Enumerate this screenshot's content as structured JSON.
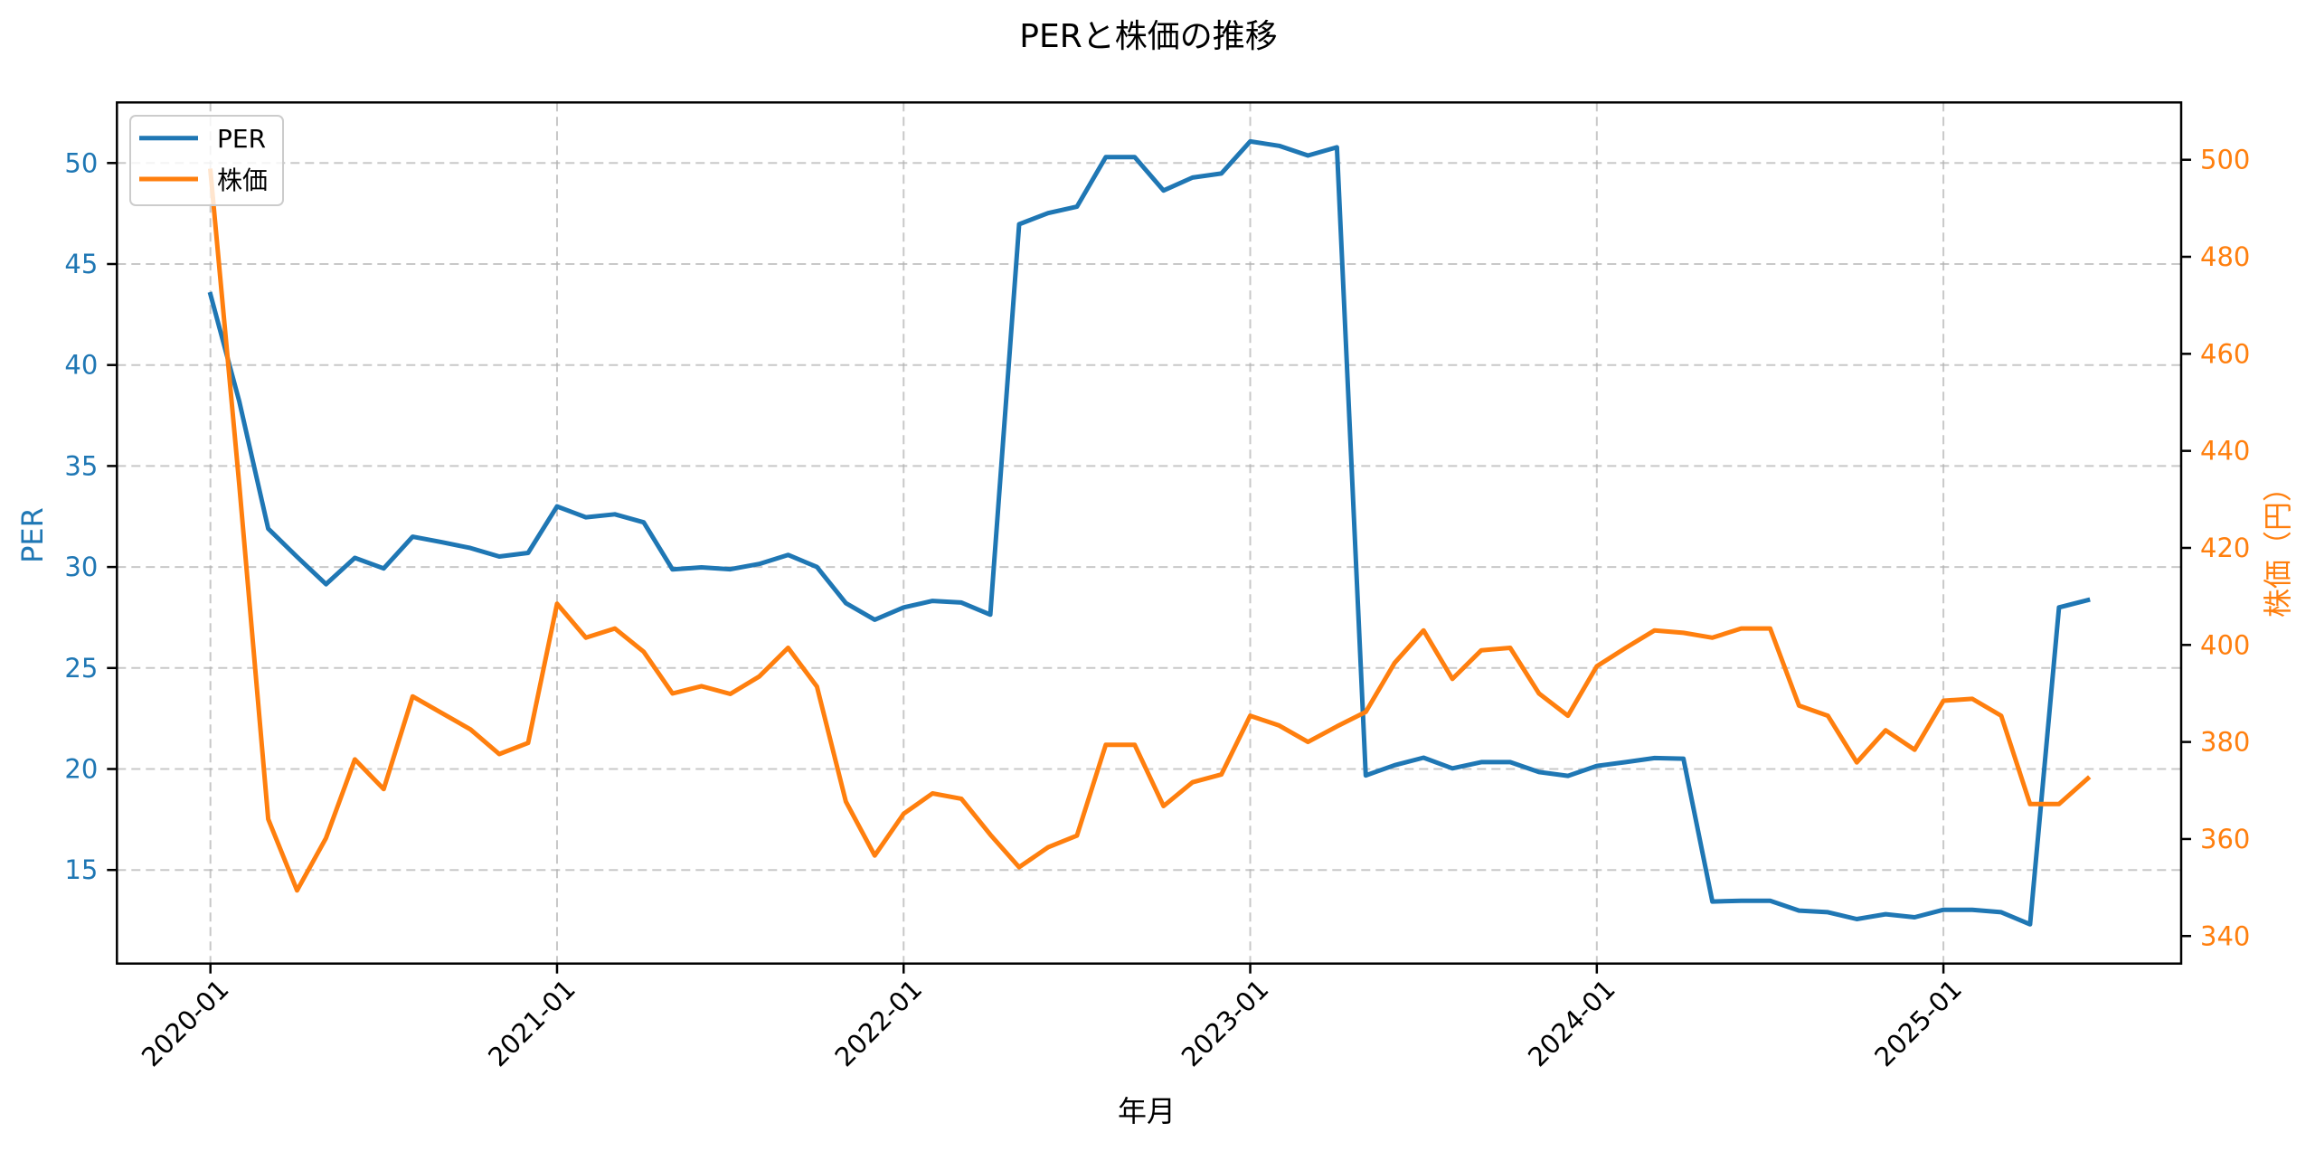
{
  "chart_data": {
    "type": "line",
    "title": "PERと株価の推移",
    "xlabel": "年月",
    "ylabel_left": "PER",
    "ylabel_right": "株価（円）",
    "legend": {
      "position": "upper left",
      "entries": [
        "PER",
        "株価"
      ]
    },
    "grid": true,
    "x_tick_labels": [
      "2020-01",
      "2021-01",
      "2022-01",
      "2023-01",
      "2024-01",
      "2025-01"
    ],
    "x_tick_indices": [
      0,
      12,
      24,
      36,
      48,
      60
    ],
    "y_left_ticks": [
      15,
      20,
      25,
      30,
      35,
      40,
      45,
      50
    ],
    "y_right_ticks": [
      340,
      360,
      380,
      400,
      420,
      440,
      460,
      480,
      500
    ],
    "x": [
      "2020-01",
      "2020-02",
      "2020-03",
      "2020-04",
      "2020-05",
      "2020-06",
      "2020-07",
      "2020-08",
      "2020-09",
      "2020-10",
      "2020-11",
      "2020-12",
      "2021-01",
      "2021-02",
      "2021-03",
      "2021-04",
      "2021-05",
      "2021-06",
      "2021-07",
      "2021-08",
      "2021-09",
      "2021-10",
      "2021-11",
      "2021-12",
      "2022-01",
      "2022-02",
      "2022-03",
      "2022-04",
      "2022-05",
      "2022-06",
      "2022-07",
      "2022-08",
      "2022-09",
      "2022-10",
      "2022-11",
      "2022-12",
      "2023-01",
      "2023-02",
      "2023-03",
      "2023-04",
      "2023-05",
      "2023-06",
      "2023-07",
      "2023-08",
      "2023-09",
      "2023-10",
      "2023-11",
      "2023-12",
      "2024-01",
      "2024-02",
      "2024-03",
      "2024-04",
      "2024-05",
      "2024-06",
      "2024-07",
      "2024-08",
      "2024-09",
      "2024-10",
      "2024-11",
      "2024-12",
      "2025-01",
      "2025-02",
      "2025-03",
      "2025-04",
      "2025-05",
      "2025-06"
    ],
    "series": [
      {
        "name": "PER",
        "axis": "left",
        "color": "#1f77b4",
        "values": [
          43.5,
          38.2,
          31.9,
          30.5,
          29.15,
          30.45,
          29.93,
          31.5,
          31.23,
          30.94,
          30.52,
          30.7,
          33.0,
          32.46,
          32.61,
          32.21,
          29.88,
          29.98,
          29.89,
          30.15,
          30.6,
          30.0,
          28.21,
          27.39,
          28.0,
          28.32,
          28.24,
          27.64,
          46.97,
          47.52,
          47.84,
          50.29,
          50.29,
          48.64,
          49.28,
          49.48,
          51.07,
          50.85,
          50.37,
          50.78,
          19.68,
          20.19,
          20.56,
          20.03,
          20.34,
          20.34,
          19.85,
          19.66,
          20.15,
          20.34,
          20.54,
          20.51,
          13.44,
          13.48,
          13.48,
          12.99,
          12.91,
          12.57,
          12.81,
          12.66,
          13.03,
          13.03,
          12.91,
          12.31,
          28.0,
          28.36
        ]
      },
      {
        "name": "株価",
        "axis": "right",
        "color": "#ff7f0e",
        "values": [
          497.7,
          433.0,
          364.1,
          349.4,
          360.2,
          376.4,
          370.3,
          389.4,
          386.0,
          382.6,
          377.5,
          379.8,
          408.5,
          401.5,
          403.4,
          398.6,
          390.0,
          391.5,
          389.9,
          393.5,
          399.4,
          391.4,
          367.7,
          356.6,
          365.2,
          369.4,
          368.3,
          360.9,
          354.2,
          358.3,
          360.7,
          379.4,
          379.4,
          366.8,
          371.7,
          373.3,
          385.4,
          383.4,
          380.0,
          383.2,
          386.2,
          396.3,
          403.0,
          393.0,
          398.9,
          399.4,
          390.0,
          385.4,
          395.6,
          399.4,
          403.0,
          402.5,
          401.5,
          403.4,
          403.4,
          387.5,
          385.4,
          375.8,
          382.4,
          378.4,
          388.5,
          388.9,
          385.4,
          367.2,
          367.2,
          372.5
        ]
      }
    ],
    "ylim_left": [
      10.55,
      52.85
    ],
    "ylim_right": [
      334.3,
      511.2
    ]
  }
}
